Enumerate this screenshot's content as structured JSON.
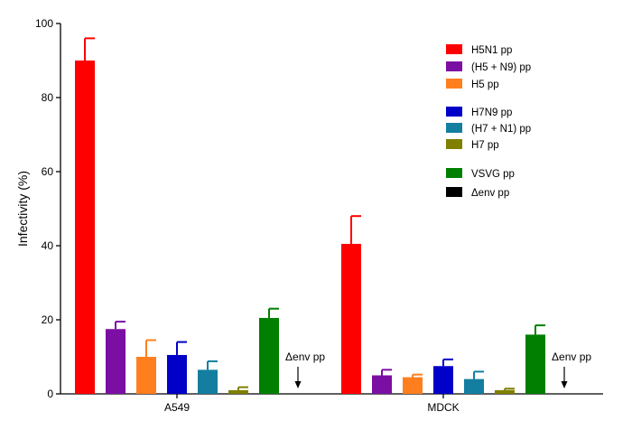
{
  "chart_data": {
    "type": "bar",
    "ylabel": "Infectivity (%)",
    "ylim": [
      0,
      100
    ],
    "yticks": [
      "0",
      "20",
      "40",
      "60",
      "80",
      "100"
    ],
    "grid": false,
    "legend_position": "top-right",
    "categories": [
      "A549",
      "MDCK"
    ],
    "series": [
      {
        "name": "H5N1 pp",
        "color": "#ff0000",
        "values": [
          90,
          40.5
        ],
        "errors": [
          6,
          7.5
        ]
      },
      {
        "name": "(H5 + N9) pp",
        "color": "#7b0fa3",
        "values": [
          17.5,
          5
        ],
        "errors": [
          2,
          1.5
        ]
      },
      {
        "name": "H5 pp",
        "color": "#ff7f1e",
        "values": [
          10,
          4.5
        ],
        "errors": [
          4.5,
          0.7
        ]
      },
      {
        "name": "H7N9 pp",
        "color": "#0000c8",
        "values": [
          10.5,
          7.5
        ],
        "errors": [
          3.5,
          1.8
        ]
      },
      {
        "name": "(H7 + N1) pp",
        "color": "#137ea0",
        "values": [
          6.5,
          4
        ],
        "errors": [
          2.3,
          2
        ]
      },
      {
        "name": "H7 pp",
        "color": "#7f7f00",
        "values": [
          1,
          1
        ],
        "errors": [
          0.8,
          0.4
        ]
      },
      {
        "name": "VSVG pp",
        "color": "#007f00",
        "values": [
          20.5,
          16
        ],
        "errors": [
          2.5,
          2.5
        ]
      },
      {
        "name": "Δenv pp",
        "color": "#000000",
        "values": [
          0,
          0
        ],
        "errors": [
          0,
          0
        ]
      }
    ],
    "annotations": [
      {
        "text": "Δenv pp",
        "category": "A549"
      },
      {
        "text": "Δenv pp",
        "category": "MDCK"
      }
    ]
  }
}
